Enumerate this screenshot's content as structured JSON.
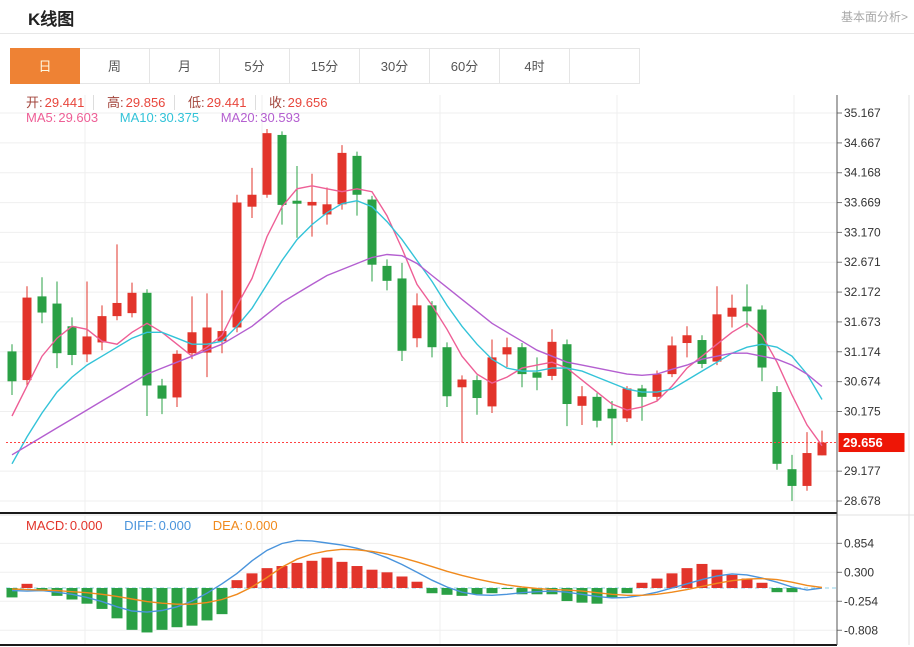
{
  "header": {
    "title": "K线图",
    "link": "基本面分析>"
  },
  "tabs": {
    "items": [
      "日",
      "周",
      "月",
      "5分",
      "15分",
      "30分",
      "60分",
      "4时"
    ],
    "selected_index": 0
  },
  "legend_ohlc": {
    "items": [
      {
        "label": "开:",
        "value": "29.441"
      },
      {
        "label": "高:",
        "value": "29.856"
      },
      {
        "label": "低:",
        "value": "29.441"
      },
      {
        "label": "收:",
        "value": "29.656"
      }
    ]
  },
  "legend_ma": {
    "items": [
      {
        "label": "MA5:",
        "value": "29.603",
        "color_key": "ma5"
      },
      {
        "label": "MA10:",
        "value": "30.375",
        "color_key": "ma10"
      },
      {
        "label": "MA20:",
        "value": "30.593",
        "color_key": "ma20"
      }
    ]
  },
  "legend_macd": {
    "items": [
      {
        "label": "MACD:",
        "value": "0.000",
        "color_key": "up"
      },
      {
        "label": "DIFF:",
        "value": "0.000",
        "color_key": "diff"
      },
      {
        "label": "DEA:",
        "value": "0.000",
        "color_key": "dea"
      }
    ]
  },
  "price_tag": "29.656",
  "colors": {
    "up": "#e2342b",
    "down": "#2aa045",
    "ma5": "#ee5f96",
    "ma10": "#33c3d8",
    "ma20": "#b45fd0",
    "diff": "#4a94dc",
    "dea": "#f08a1d",
    "ohlc_label": "#a2453c",
    "ohlc_value": "#e8463c",
    "price_tag_bg": "#ee1606",
    "price_tag_text": "#ffffff",
    "dotted_line": "#ff4242",
    "zero_dash": "#8fd0e8",
    "grid": "#efefef",
    "tick": "#777777",
    "axis_text": "#333333",
    "axis_line": "#555555",
    "border_dark": "#1a1a1a",
    "panel_sep": "#e2e2e2"
  },
  "chart_data": [
    {
      "type": "candlestick",
      "title": "K线图 daily candles",
      "ylim": [
        28.678,
        35.167
      ],
      "y_ticks": [
        "35.167",
        "34.667",
        "34.168",
        "33.669",
        "33.170",
        "32.671",
        "32.172",
        "31.673",
        "31.174",
        "30.674",
        "30.175",
        "29.177",
        "28.678"
      ],
      "current_price": 29.656,
      "legend_position": "top-left",
      "grid": true,
      "candles_ohlc": [
        [
          31.18,
          31.3,
          30.45,
          30.68
        ],
        [
          30.7,
          32.27,
          30.6,
          32.08
        ],
        [
          32.1,
          32.42,
          31.65,
          31.83
        ],
        [
          31.98,
          32.35,
          30.9,
          31.15
        ],
        [
          31.6,
          31.75,
          30.95,
          31.12
        ],
        [
          31.13,
          32.35,
          31.0,
          31.43
        ],
        [
          31.33,
          31.95,
          31.2,
          31.77
        ],
        [
          31.77,
          32.97,
          31.7,
          31.99
        ],
        [
          31.82,
          32.33,
          31.75,
          32.16
        ],
        [
          32.16,
          32.22,
          30.1,
          30.61
        ],
        [
          30.61,
          30.72,
          30.13,
          30.39
        ],
        [
          30.41,
          31.2,
          30.25,
          31.14
        ],
        [
          31.15,
          32.1,
          31.05,
          31.5
        ],
        [
          31.16,
          32.15,
          30.75,
          31.58
        ],
        [
          31.35,
          32.2,
          31.15,
          31.52
        ],
        [
          31.58,
          33.8,
          31.5,
          33.67
        ],
        [
          33.6,
          34.25,
          33.41,
          33.8
        ],
        [
          33.8,
          34.9,
          33.75,
          34.83
        ],
        [
          34.8,
          34.86,
          33.3,
          33.63
        ],
        [
          33.7,
          34.28,
          33.08,
          33.65
        ],
        [
          33.62,
          34.15,
          33.1,
          33.68
        ],
        [
          33.47,
          33.92,
          33.3,
          33.64
        ],
        [
          33.64,
          34.63,
          33.55,
          34.5
        ],
        [
          34.45,
          34.52,
          33.45,
          33.8
        ],
        [
          33.72,
          33.78,
          32.35,
          32.63
        ],
        [
          32.61,
          32.72,
          32.2,
          32.36
        ],
        [
          32.4,
          32.66,
          31.02,
          31.19
        ],
        [
          31.4,
          32.15,
          31.25,
          31.95
        ],
        [
          31.95,
          32.02,
          31.08,
          31.25
        ],
        [
          31.25,
          31.33,
          30.25,
          30.43
        ],
        [
          30.58,
          30.78,
          29.65,
          30.71
        ],
        [
          30.7,
          30.78,
          30.12,
          30.4
        ],
        [
          30.26,
          31.38,
          30.15,
          31.08
        ],
        [
          31.13,
          31.41,
          30.92,
          31.25
        ],
        [
          31.25,
          31.32,
          30.58,
          30.8
        ],
        [
          30.83,
          31.08,
          30.53,
          30.74
        ],
        [
          30.77,
          31.55,
          30.7,
          31.34
        ],
        [
          31.3,
          31.38,
          29.93,
          30.3
        ],
        [
          30.27,
          30.6,
          29.95,
          30.43
        ],
        [
          30.42,
          30.48,
          29.91,
          30.02
        ],
        [
          30.22,
          30.35,
          29.61,
          30.06
        ],
        [
          30.06,
          30.6,
          30.0,
          30.56
        ],
        [
          30.56,
          30.62,
          30.02,
          30.42
        ],
        [
          30.42,
          30.86,
          30.36,
          30.8
        ],
        [
          30.8,
          31.43,
          30.75,
          31.28
        ],
        [
          31.32,
          31.6,
          31.08,
          31.45
        ],
        [
          31.37,
          31.45,
          30.9,
          30.97
        ],
        [
          31.01,
          32.27,
          30.95,
          31.8
        ],
        [
          31.76,
          32.13,
          31.58,
          31.91
        ],
        [
          31.93,
          32.3,
          31.58,
          31.85
        ],
        [
          31.88,
          31.95,
          30.68,
          30.91
        ],
        [
          30.5,
          30.6,
          29.2,
          29.3
        ],
        [
          29.21,
          29.45,
          28.68,
          28.93
        ],
        [
          28.93,
          29.83,
          28.85,
          29.48
        ],
        [
          29.441,
          29.856,
          29.441,
          29.656
        ]
      ],
      "series": [
        {
          "name": "MA5",
          "values": [
            30.1,
            30.6,
            31.1,
            31.4,
            31.6,
            31.55,
            31.35,
            31.3,
            31.5,
            31.65,
            31.5,
            31.3,
            31.1,
            31.25,
            31.45,
            31.95,
            32.4,
            33.1,
            33.6,
            33.9,
            33.95,
            33.9,
            33.85,
            33.9,
            33.85,
            33.45,
            32.9,
            32.3,
            31.95,
            31.55,
            31.1,
            30.8,
            30.65,
            30.75,
            30.9,
            30.95,
            31.0,
            30.9,
            30.7,
            30.5,
            30.3,
            30.2,
            30.25,
            30.35,
            30.6,
            30.9,
            31.1,
            31.3,
            31.5,
            31.65,
            31.45,
            31.0,
            30.45,
            29.95,
            29.603
          ]
        },
        {
          "name": "MA10",
          "values": [
            29.3,
            29.75,
            30.15,
            30.5,
            30.75,
            30.95,
            31.1,
            31.25,
            31.4,
            31.5,
            31.5,
            31.4,
            31.3,
            31.3,
            31.35,
            31.6,
            31.9,
            32.3,
            32.7,
            33.05,
            33.3,
            33.5,
            33.65,
            33.7,
            33.6,
            33.35,
            33.05,
            32.7,
            32.35,
            31.95,
            31.6,
            31.3,
            31.05,
            30.9,
            30.85,
            30.85,
            30.9,
            30.9,
            30.85,
            30.75,
            30.65,
            30.55,
            30.5,
            30.5,
            30.55,
            30.7,
            30.85,
            31.0,
            31.15,
            31.25,
            31.3,
            31.25,
            31.1,
            30.8,
            30.375
          ]
        },
        {
          "name": "MA20",
          "values": [
            29.45,
            29.6,
            29.75,
            29.9,
            30.05,
            30.2,
            30.35,
            30.5,
            30.65,
            30.8,
            30.9,
            31.0,
            31.1,
            31.2,
            31.3,
            31.45,
            31.6,
            31.8,
            32.0,
            32.15,
            32.3,
            32.45,
            32.55,
            32.65,
            32.75,
            32.8,
            32.78,
            32.65,
            32.45,
            32.25,
            32.05,
            31.85,
            31.65,
            31.5,
            31.35,
            31.2,
            31.1,
            31.0,
            30.95,
            30.9,
            30.85,
            30.8,
            30.78,
            30.8,
            30.88,
            30.95,
            31.05,
            31.1,
            31.15,
            31.15,
            31.1,
            31.05,
            30.95,
            30.8,
            30.593
          ]
        }
      ]
    },
    {
      "type": "bar",
      "title": "MACD",
      "y_ticks": [
        "0.854",
        "0.300",
        "-0.254",
        "-0.808"
      ],
      "zero_line": 0,
      "grid": true,
      "hist": [
        -0.18,
        0.08,
        -0.06,
        -0.15,
        -0.22,
        -0.3,
        -0.4,
        -0.58,
        -0.8,
        -0.85,
        -0.8,
        -0.75,
        -0.72,
        -0.62,
        -0.5,
        0.15,
        0.28,
        0.38,
        0.42,
        0.48,
        0.52,
        0.58,
        0.5,
        0.42,
        0.35,
        0.3,
        0.22,
        0.12,
        -0.1,
        -0.13,
        -0.15,
        -0.12,
        -0.1,
        -0.02,
        -0.12,
        -0.12,
        -0.12,
        -0.25,
        -0.28,
        -0.3,
        -0.18,
        -0.1,
        0.1,
        0.18,
        0.28,
        0.38,
        0.46,
        0.35,
        0.25,
        0.18,
        0.1,
        -0.08,
        -0.08,
        0.0,
        0.0
      ],
      "series": [
        {
          "name": "DIFF",
          "values": [
            -0.05,
            -0.06,
            -0.05,
            -0.08,
            -0.12,
            -0.18,
            -0.26,
            -0.36,
            -0.44,
            -0.46,
            -0.43,
            -0.36,
            -0.25,
            -0.1,
            0.08,
            0.28,
            0.52,
            0.72,
            0.85,
            0.91,
            0.9,
            0.86,
            0.82,
            0.76,
            0.68,
            0.58,
            0.45,
            0.3,
            0.15,
            0.02,
            -0.08,
            -0.13,
            -0.14,
            -0.12,
            -0.09,
            -0.07,
            -0.06,
            -0.08,
            -0.12,
            -0.16,
            -0.19,
            -0.18,
            -0.14,
            -0.08,
            0.0,
            0.08,
            0.16,
            0.23,
            0.27,
            0.25,
            0.19,
            0.11,
            0.02,
            -0.04,
            0.0
          ]
        },
        {
          "name": "DEA",
          "values": [
            -0.02,
            -0.03,
            -0.04,
            -0.05,
            -0.07,
            -0.09,
            -0.12,
            -0.16,
            -0.21,
            -0.26,
            -0.29,
            -0.31,
            -0.31,
            -0.28,
            -0.22,
            -0.12,
            0.02,
            0.2,
            0.4,
            0.55,
            0.65,
            0.71,
            0.74,
            0.73,
            0.7,
            0.65,
            0.58,
            0.5,
            0.41,
            0.32,
            0.24,
            0.17,
            0.11,
            0.06,
            0.02,
            -0.01,
            -0.03,
            -0.04,
            -0.06,
            -0.09,
            -0.12,
            -0.14,
            -0.14,
            -0.12,
            -0.08,
            -0.03,
            0.03,
            0.09,
            0.14,
            0.17,
            0.18,
            0.16,
            0.11,
            0.05,
            0.01
          ]
        }
      ]
    }
  ]
}
